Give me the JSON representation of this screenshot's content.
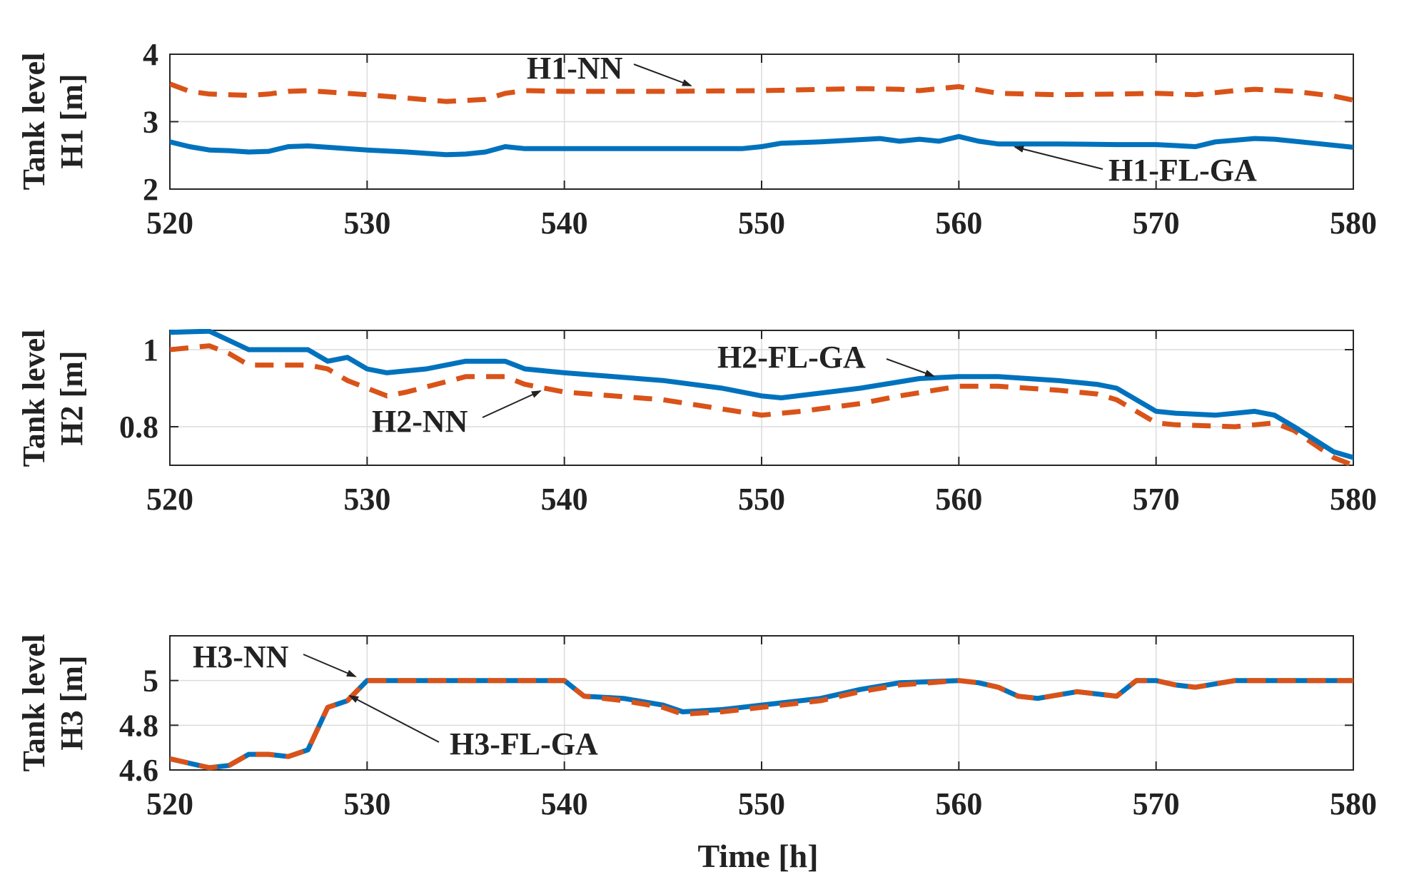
{
  "chart_data": [
    {
      "type": "line",
      "xlabel": "",
      "ylabel_lines": [
        "Tank level",
        "H1 [m]"
      ],
      "xlim": [
        520,
        580
      ],
      "ylim": [
        2,
        4
      ],
      "xticks": [
        520,
        530,
        540,
        550,
        560,
        570,
        580
      ],
      "yticks": [
        2,
        3,
        4
      ],
      "grid": true,
      "series": [
        {
          "name": "H1-NN",
          "style": "dashed",
          "color": "#D95319",
          "points": [
            [
              520,
              3.56
            ],
            [
              521,
              3.45
            ],
            [
              522,
              3.41
            ],
            [
              523,
              3.4
            ],
            [
              524,
              3.39
            ],
            [
              525,
              3.41
            ],
            [
              526,
              3.45
            ],
            [
              527,
              3.46
            ],
            [
              528,
              3.44
            ],
            [
              530,
              3.4
            ],
            [
              532,
              3.35
            ],
            [
              534,
              3.3
            ],
            [
              536,
              3.33
            ],
            [
              537,
              3.42
            ],
            [
              538,
              3.46
            ],
            [
              540,
              3.45
            ],
            [
              545,
              3.45
            ],
            [
              550,
              3.46
            ],
            [
              555,
              3.49
            ],
            [
              557,
              3.48
            ],
            [
              558,
              3.46
            ],
            [
              559,
              3.49
            ],
            [
              560,
              3.52
            ],
            [
              561,
              3.47
            ],
            [
              562,
              3.42
            ],
            [
              565,
              3.4
            ],
            [
              568,
              3.41
            ],
            [
              570,
              3.42
            ],
            [
              572,
              3.4
            ],
            [
              574,
              3.46
            ],
            [
              575,
              3.48
            ],
            [
              577,
              3.45
            ],
            [
              579,
              3.38
            ],
            [
              580,
              3.32
            ]
          ]
        },
        {
          "name": "H1-FL-GA",
          "style": "solid",
          "color": "#0072BD",
          "points": [
            [
              520,
              2.7
            ],
            [
              521,
              2.63
            ],
            [
              522,
              2.58
            ],
            [
              523,
              2.57
            ],
            [
              524,
              2.55
            ],
            [
              525,
              2.56
            ],
            [
              526,
              2.63
            ],
            [
              527,
              2.64
            ],
            [
              528,
              2.62
            ],
            [
              530,
              2.58
            ],
            [
              532,
              2.55
            ],
            [
              534,
              2.51
            ],
            [
              535,
              2.52
            ],
            [
              536,
              2.55
            ],
            [
              537,
              2.63
            ],
            [
              538,
              2.6
            ],
            [
              540,
              2.6
            ],
            [
              545,
              2.6
            ],
            [
              549,
              2.6
            ],
            [
              550,
              2.63
            ],
            [
              551,
              2.68
            ],
            [
              553,
              2.7
            ],
            [
              556,
              2.75
            ],
            [
              557,
              2.71
            ],
            [
              558,
              2.74
            ],
            [
              559,
              2.71
            ],
            [
              560,
              2.78
            ],
            [
              561,
              2.71
            ],
            [
              562,
              2.67
            ],
            [
              565,
              2.67
            ],
            [
              568,
              2.66
            ],
            [
              570,
              2.66
            ],
            [
              572,
              2.63
            ],
            [
              573,
              2.7
            ],
            [
              575,
              2.75
            ],
            [
              576,
              2.74
            ],
            [
              578,
              2.68
            ],
            [
              580,
              2.62
            ]
          ]
        }
      ],
      "annotations": [
        {
          "text": "H1-NN",
          "points_to": "H1-NN"
        },
        {
          "text": "H1-FL-GA",
          "points_to": "H1-FL-GA"
        }
      ]
    },
    {
      "type": "line",
      "xlabel": "",
      "ylabel_lines": [
        "Tank level",
        "H2 [m]"
      ],
      "xlim": [
        520,
        580
      ],
      "ylim": [
        0.7,
        1.05
      ],
      "xticks": [
        520,
        530,
        540,
        550,
        560,
        570,
        580
      ],
      "yticks": [
        0.8,
        1
      ],
      "ytick_labels": [
        "0.8",
        "1"
      ],
      "grid": true,
      "series": [
        {
          "name": "H2-NN",
          "style": "dashed",
          "color": "#D95319",
          "points": [
            [
              520,
              1.0
            ],
            [
              522,
              1.01
            ],
            [
              523,
              0.99
            ],
            [
              524,
              0.96
            ],
            [
              526,
              0.96
            ],
            [
              527,
              0.96
            ],
            [
              528,
              0.95
            ],
            [
              529,
              0.92
            ],
            [
              531,
              0.88
            ],
            [
              532,
              0.89
            ],
            [
              535,
              0.93
            ],
            [
              537,
              0.93
            ],
            [
              538,
              0.91
            ],
            [
              540,
              0.89
            ],
            [
              545,
              0.87
            ],
            [
              550,
              0.83
            ],
            [
              552,
              0.84
            ],
            [
              555,
              0.86
            ],
            [
              557,
              0.88
            ],
            [
              560,
              0.905
            ],
            [
              562,
              0.905
            ],
            [
              565,
              0.895
            ],
            [
              567,
              0.885
            ],
            [
              568,
              0.87
            ],
            [
              570,
              0.81
            ],
            [
              571,
              0.805
            ],
            [
              574,
              0.8
            ],
            [
              576,
              0.81
            ],
            [
              577,
              0.79
            ],
            [
              579,
              0.72
            ],
            [
              580,
              0.7
            ]
          ]
        },
        {
          "name": "H2-FL-GA",
          "style": "solid",
          "color": "#0072BD",
          "points": [
            [
              520,
              1.045
            ],
            [
              522,
              1.048
            ],
            [
              524,
              1.0
            ],
            [
              526,
              1.0
            ],
            [
              527,
              1.0
            ],
            [
              528,
              0.97
            ],
            [
              529,
              0.98
            ],
            [
              530,
              0.95
            ],
            [
              531,
              0.94
            ],
            [
              533,
              0.95
            ],
            [
              535,
              0.97
            ],
            [
              537,
              0.97
            ],
            [
              538,
              0.95
            ],
            [
              540,
              0.94
            ],
            [
              545,
              0.92
            ],
            [
              548,
              0.9
            ],
            [
              550,
              0.88
            ],
            [
              551,
              0.875
            ],
            [
              555,
              0.9
            ],
            [
              558,
              0.925
            ],
            [
              560,
              0.93
            ],
            [
              562,
              0.93
            ],
            [
              565,
              0.92
            ],
            [
              567,
              0.91
            ],
            [
              568,
              0.9
            ],
            [
              570,
              0.84
            ],
            [
              571,
              0.835
            ],
            [
              573,
              0.83
            ],
            [
              575,
              0.84
            ],
            [
              576,
              0.83
            ],
            [
              577,
              0.8
            ],
            [
              579,
              0.735
            ],
            [
              580,
              0.72
            ]
          ]
        }
      ],
      "annotations": [
        {
          "text": "H2-FL-GA",
          "points_to": "H2-FL-GA"
        },
        {
          "text": "H2-NN",
          "points_to": "H2-NN"
        }
      ]
    },
    {
      "type": "line",
      "xlabel": "Time [h]",
      "ylabel_lines": [
        "Tank level",
        "H3 [m]"
      ],
      "xlim": [
        520,
        580
      ],
      "ylim": [
        4.6,
        5.2
      ],
      "xticks": [
        520,
        530,
        540,
        550,
        560,
        570,
        580
      ],
      "yticks": [
        4.6,
        4.8,
        5
      ],
      "ytick_labels": [
        "4.6",
        "4.8",
        "5"
      ],
      "grid": true,
      "series": [
        {
          "name": "H3-FL-GA",
          "style": "solid",
          "color": "#0072BD",
          "points": [
            [
              520,
              4.65
            ],
            [
              521,
              4.63
            ],
            [
              522,
              4.61
            ],
            [
              523,
              4.62
            ],
            [
              524,
              4.67
            ],
            [
              525,
              4.67
            ],
            [
              526,
              4.66
            ],
            [
              527,
              4.69
            ],
            [
              528,
              4.88
            ],
            [
              529,
              4.91
            ],
            [
              530,
              5.0
            ],
            [
              535,
              5.0
            ],
            [
              540,
              5.0
            ],
            [
              541,
              4.93
            ],
            [
              543,
              4.92
            ],
            [
              545,
              4.89
            ],
            [
              546,
              4.86
            ],
            [
              548,
              4.87
            ],
            [
              550,
              4.89
            ],
            [
              553,
              4.92
            ],
            [
              555,
              4.96
            ],
            [
              557,
              4.99
            ],
            [
              560,
              5.0
            ],
            [
              561,
              4.99
            ],
            [
              562,
              4.97
            ],
            [
              563,
              4.93
            ],
            [
              564,
              4.92
            ],
            [
              566,
              4.95
            ],
            [
              568,
              4.93
            ],
            [
              569,
              5.0
            ],
            [
              570,
              5.0
            ],
            [
              571,
              4.98
            ],
            [
              572,
              4.97
            ],
            [
              574,
              5.0
            ],
            [
              576,
              5.0
            ],
            [
              580,
              5.0
            ]
          ]
        },
        {
          "name": "H3-NN",
          "style": "dashed",
          "color": "#D95319",
          "points": [
            [
              520,
              4.65
            ],
            [
              521,
              4.63
            ],
            [
              522,
              4.61
            ],
            [
              523,
              4.62
            ],
            [
              524,
              4.67
            ],
            [
              525,
              4.67
            ],
            [
              526,
              4.66
            ],
            [
              527,
              4.69
            ],
            [
              528,
              4.88
            ],
            [
              529,
              4.91
            ],
            [
              530,
              5.0
            ],
            [
              535,
              5.0
            ],
            [
              540,
              5.0
            ],
            [
              541,
              4.93
            ],
            [
              543,
              4.91
            ],
            [
              545,
              4.88
            ],
            [
              546,
              4.85
            ],
            [
              548,
              4.86
            ],
            [
              550,
              4.88
            ],
            [
              553,
              4.91
            ],
            [
              555,
              4.95
            ],
            [
              557,
              4.98
            ],
            [
              560,
              5.0
            ],
            [
              561,
              4.99
            ],
            [
              562,
              4.97
            ],
            [
              563,
              4.93
            ],
            [
              564,
              4.92
            ],
            [
              566,
              4.95
            ],
            [
              568,
              4.93
            ],
            [
              569,
              5.0
            ],
            [
              570,
              5.0
            ],
            [
              571,
              4.98
            ],
            [
              572,
              4.97
            ],
            [
              574,
              5.0
            ],
            [
              576,
              5.0
            ],
            [
              580,
              5.0
            ]
          ]
        }
      ],
      "annotations": [
        {
          "text": "H3-NN",
          "points_to": "H3-NN"
        },
        {
          "text": "H3-FL-GA",
          "points_to": "H3-FL-GA"
        }
      ]
    }
  ]
}
